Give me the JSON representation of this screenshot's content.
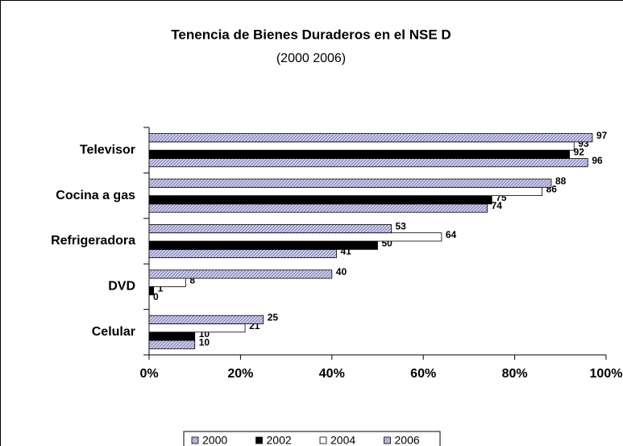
{
  "chart_data": {
    "type": "hbar",
    "title": "Tenencia de Bienes Duraderos en el NSE D",
    "subtitle": "(2000 2006)",
    "categories": [
      "Televisor",
      "Cocina a gas",
      "Refrigeradora",
      "DVD",
      "Celular"
    ],
    "series": [
      {
        "name": "2000",
        "color": "#ccccff",
        "pattern": "hatch",
        "values": [
          96,
          74,
          41,
          0,
          10
        ]
      },
      {
        "name": "2002",
        "color": "#000000",
        "values": [
          92,
          75,
          50,
          1,
          10
        ]
      },
      {
        "name": "2004",
        "color": "#ffffff",
        "values": [
          93,
          86,
          64,
          8,
          21
        ]
      },
      {
        "name": "2006",
        "color": "#ccccff",
        "pattern": "hatch",
        "values": [
          97,
          88,
          53,
          40,
          25
        ]
      }
    ],
    "xlim": [
      0,
      100
    ],
    "xticks": [
      {
        "value": 0,
        "label": "0%"
      },
      {
        "value": 20,
        "label": "20%"
      },
      {
        "value": 40,
        "label": "40%"
      },
      {
        "value": 60,
        "label": "60%"
      },
      {
        "value": 80,
        "label": "80%"
      },
      {
        "value": 100,
        "label": "100%"
      }
    ],
    "legend": "bottom"
  }
}
